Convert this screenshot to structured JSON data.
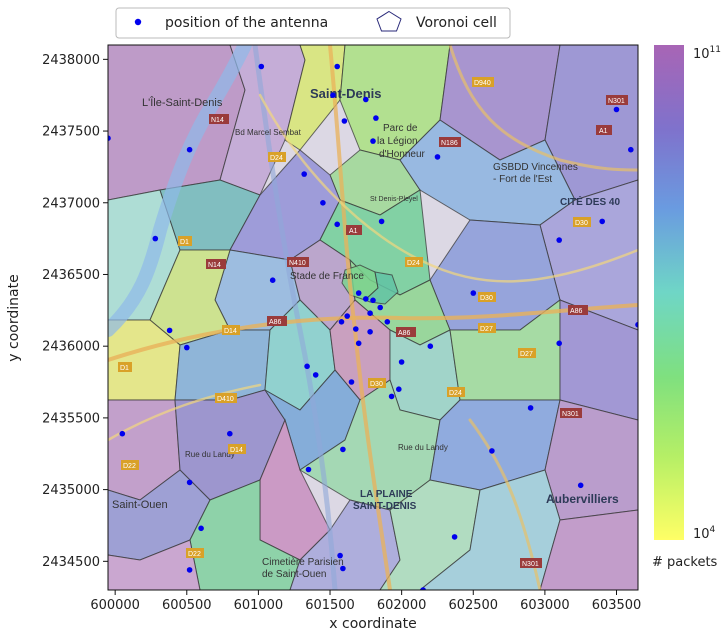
{
  "chart_data": {
    "type": "scatter",
    "title": "",
    "xlabel": "x coordinate",
    "ylabel": "y coordinate",
    "xlim": [
      599950,
      603650
    ],
    "ylim": [
      2434300,
      2438100
    ],
    "xticks": [
      600000,
      600500,
      601000,
      601500,
      602000,
      602500,
      603000,
      603500
    ],
    "yticks": [
      2434500,
      2435000,
      2435500,
      2436000,
      2436500,
      2437000,
      2437500,
      2438000
    ],
    "legend": {
      "position": "top",
      "entries": [
        {
          "label": "position of the antenna",
          "marker": "dot",
          "color": "#0000ee"
        },
        {
          "label": "Voronoi cell",
          "marker": "pentagon",
          "color": "#2a2a7a"
        }
      ]
    },
    "colorbar": {
      "label": "# packets",
      "min_label": "10",
      "min_exp": "4",
      "max_label": "10",
      "max_exp": "11",
      "colormap": [
        "#ffff66",
        "#b5ef66",
        "#7fe07f",
        "#6fd6c6",
        "#6a9be0",
        "#7f72cc",
        "#a865b5"
      ]
    },
    "series": [
      {
        "name": "position of the antenna",
        "points": [
          [
            599950,
            2437450
          ],
          [
            600520,
            2437370
          ],
          [
            600280,
            2436750
          ],
          [
            600380,
            2436110
          ],
          [
            600500,
            2435990
          ],
          [
            600050,
            2435390
          ],
          [
            600520,
            2435050
          ],
          [
            600600,
            2434730
          ],
          [
            600520,
            2434440
          ],
          [
            600800,
            2435390
          ],
          [
            601100,
            2436460
          ],
          [
            601450,
            2437000
          ],
          [
            601520,
            2437750
          ],
          [
            601550,
            2437950
          ],
          [
            601750,
            2437720
          ],
          [
            601820,
            2437590
          ],
          [
            601600,
            2437570
          ],
          [
            601800,
            2437430
          ],
          [
            601320,
            2437200
          ],
          [
            601550,
            2436850
          ],
          [
            601700,
            2436370
          ],
          [
            601750,
            2436330
          ],
          [
            601800,
            2436320
          ],
          [
            601620,
            2436210
          ],
          [
            601580,
            2436170
          ],
          [
            601680,
            2436120
          ],
          [
            601780,
            2436100
          ],
          [
            601850,
            2436270
          ],
          [
            601900,
            2436170
          ],
          [
            601780,
            2436230
          ],
          [
            601700,
            2436020
          ],
          [
            601340,
            2435860
          ],
          [
            601400,
            2435800
          ],
          [
            601650,
            2435750
          ],
          [
            601930,
            2435650
          ],
          [
            601980,
            2435700
          ],
          [
            601590,
            2435280
          ],
          [
            601350,
            2435140
          ],
          [
            601570,
            2434540
          ],
          [
            601590,
            2434450
          ],
          [
            602000,
            2435890
          ],
          [
            602200,
            2436000
          ],
          [
            601860,
            2436870
          ],
          [
            602250,
            2437320
          ],
          [
            602500,
            2436370
          ],
          [
            602370,
            2434670
          ],
          [
            602630,
            2435270
          ],
          [
            602900,
            2435570
          ],
          [
            603100,
            2436020
          ],
          [
            603100,
            2436740
          ],
          [
            603250,
            2435030
          ],
          [
            603400,
            2436870
          ],
          [
            603600,
            2437370
          ],
          [
            603500,
            2437650
          ],
          [
            603650,
            2436150
          ],
          [
            602150,
            2434300
          ],
          [
            601020,
            2437950
          ]
        ]
      }
    ]
  }
}
